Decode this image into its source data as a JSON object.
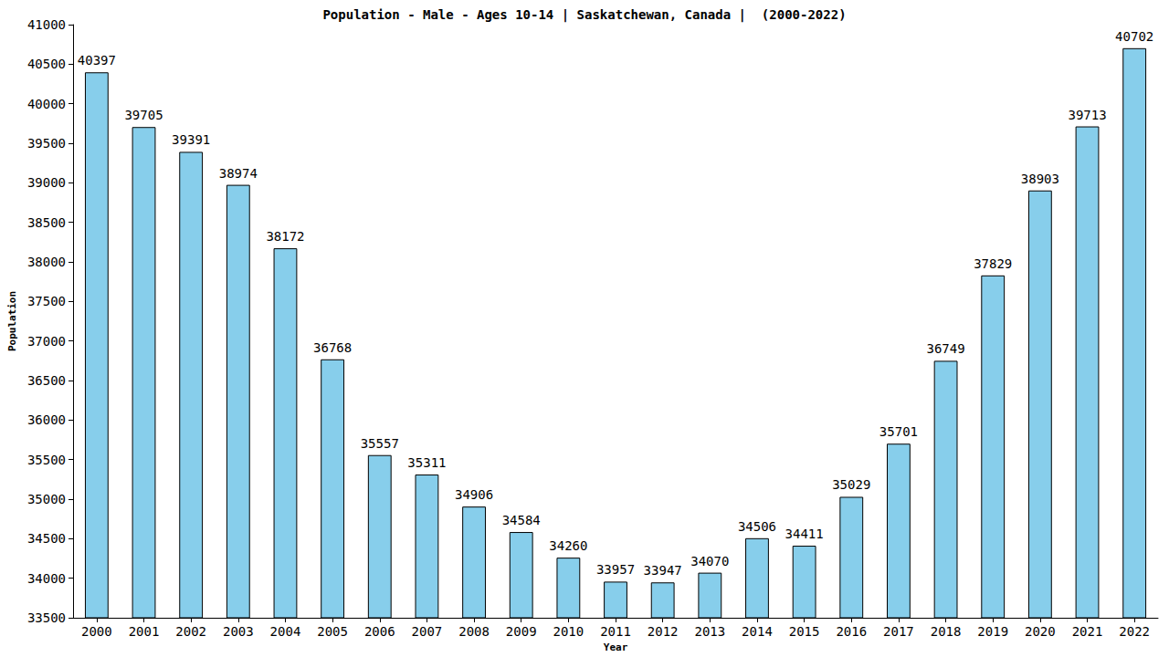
{
  "chart_data": {
    "type": "bar",
    "title": "Population - Male - Ages 10-14 | Saskatchewan, Canada |  (2000-2022)",
    "x_label": "Year",
    "y_label": "Population",
    "categories": [
      "2000",
      "2001",
      "2002",
      "2003",
      "2004",
      "2005",
      "2006",
      "2007",
      "2008",
      "2009",
      "2010",
      "2011",
      "2012",
      "2013",
      "2014",
      "2015",
      "2016",
      "2017",
      "2018",
      "2019",
      "2020",
      "2021",
      "2022"
    ],
    "values": [
      40397,
      39705,
      39391,
      38974,
      38172,
      36768,
      35557,
      35311,
      34906,
      34584,
      34260,
      33957,
      33947,
      34070,
      34506,
      34411,
      35029,
      35701,
      36749,
      37829,
      38903,
      39713,
      40702
    ],
    "color": "#87ceeb",
    "ylim": [
      33500,
      41000
    ],
    "yticks": [
      33500,
      34000,
      34500,
      35000,
      35500,
      36000,
      36500,
      37000,
      37500,
      38000,
      38500,
      39000,
      39500,
      40000,
      40500,
      41000
    ],
    "grid": false,
    "data_labels": true
  }
}
